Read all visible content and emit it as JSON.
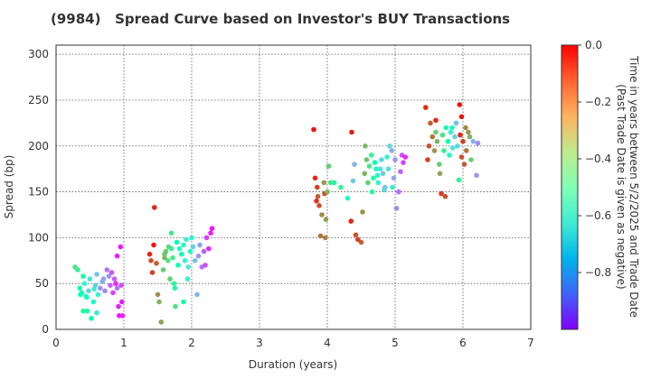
{
  "chart_data": {
    "type": "scatter",
    "title": "(9984)   Spread Curve based on Investor's BUY Transactions",
    "xlabel": "Duration (years)",
    "ylabel": "Spread (bp)",
    "xlim": [
      0,
      7
    ],
    "ylim": [
      0,
      310
    ],
    "xticks": [
      "0",
      "1",
      "2",
      "3",
      "4",
      "5",
      "6",
      "7"
    ],
    "yticks": [
      "0",
      "50",
      "100",
      "150",
      "200",
      "250",
      "300"
    ],
    "grid": true,
    "colorbar": {
      "label_line1": "Time in years between 5/2/2025 and Trade Date",
      "label_line2": "(Past Trade Date is given as negative)",
      "range": [
        -1.0,
        0.0
      ],
      "ticks": [
        "0.0",
        "−0.2",
        "−0.4",
        "−0.6",
        "−0.8"
      ],
      "colormap": "rainbow"
    },
    "points": [
      [
        0.28,
        68,
        -0.35
      ],
      [
        0.32,
        65,
        -0.4
      ],
      [
        0.35,
        45,
        -0.5
      ],
      [
        0.38,
        40,
        -0.55
      ],
      [
        0.4,
        58,
        -0.45
      ],
      [
        0.42,
        50,
        -0.6
      ],
      [
        0.45,
        35,
        -0.5
      ],
      [
        0.46,
        20,
        -0.45
      ],
      [
        0.48,
        42,
        -0.7
      ],
      [
        0.5,
        55,
        -0.65
      ],
      [
        0.52,
        12,
        -0.5
      ],
      [
        0.55,
        30,
        -0.55
      ],
      [
        0.58,
        48,
        -0.7
      ],
      [
        0.6,
        60,
        -0.72
      ],
      [
        0.62,
        38,
        -0.6
      ],
      [
        0.65,
        45,
        -0.8
      ],
      [
        0.68,
        52,
        -0.75
      ],
      [
        0.7,
        55,
        -0.78
      ],
      [
        0.72,
        42,
        -0.82
      ],
      [
        0.75,
        65,
        -0.85
      ],
      [
        0.78,
        58,
        -0.8
      ],
      [
        0.8,
        48,
        -0.88
      ],
      [
        0.82,
        62,
        -0.9
      ],
      [
        0.84,
        40,
        -0.92
      ],
      [
        0.86,
        55,
        -0.88
      ],
      [
        0.88,
        50,
        -0.95
      ],
      [
        0.9,
        45,
        -0.85
      ],
      [
        0.92,
        25,
        -0.95
      ],
      [
        0.93,
        15,
        -0.98
      ],
      [
        0.95,
        90,
        -0.97
      ],
      [
        0.96,
        48,
        -0.9
      ],
      [
        0.98,
        15,
        -0.96
      ],
      [
        0.4,
        20,
        -0.45
      ],
      [
        0.44,
        36,
        -0.55
      ],
      [
        0.56,
        44,
        -0.62
      ],
      [
        0.9,
        80,
        -0.96
      ],
      [
        0.97,
        30,
        -0.98
      ],
      [
        0.36,
        38,
        -0.52
      ],
      [
        0.6,
        18,
        -0.6
      ],
      [
        1.38,
        82,
        -0.05
      ],
      [
        1.4,
        75,
        -0.1
      ],
      [
        1.42,
        62,
        -0.08
      ],
      [
        1.44,
        92,
        -0.03
      ],
      [
        1.45,
        133,
        -0.05
      ],
      [
        1.48,
        72,
        -0.12
      ],
      [
        1.5,
        38,
        -0.2
      ],
      [
        1.52,
        30,
        -0.25
      ],
      [
        1.55,
        8,
        -0.22
      ],
      [
        1.58,
        65,
        -0.3
      ],
      [
        1.6,
        78,
        -0.25
      ],
      [
        1.62,
        85,
        -0.3
      ],
      [
        1.65,
        75,
        -0.35
      ],
      [
        1.68,
        55,
        -0.3
      ],
      [
        1.7,
        88,
        -0.4
      ],
      [
        1.72,
        78,
        -0.38
      ],
      [
        1.75,
        45,
        -0.45
      ],
      [
        1.78,
        95,
        -0.5
      ],
      [
        1.8,
        70,
        -0.48
      ],
      [
        1.82,
        88,
        -0.55
      ],
      [
        1.85,
        82,
        -0.52
      ],
      [
        1.88,
        92,
        -0.58
      ],
      [
        1.9,
        75,
        -0.6
      ],
      [
        1.92,
        98,
        -0.62
      ],
      [
        1.95,
        68,
        -0.65
      ],
      [
        1.98,
        85,
        -0.55
      ],
      [
        2.0,
        100,
        -0.6
      ],
      [
        2.02,
        90,
        -0.7
      ],
      [
        2.05,
        75,
        -0.72
      ],
      [
        2.08,
        38,
        -0.75
      ],
      [
        2.1,
        80,
        -0.8
      ],
      [
        2.12,
        92,
        -0.78
      ],
      [
        2.15,
        68,
        -0.85
      ],
      [
        2.18,
        85,
        -0.88
      ],
      [
        2.2,
        70,
        -0.9
      ],
      [
        2.22,
        100,
        -0.92
      ],
      [
        2.25,
        88,
        -0.95
      ],
      [
        2.28,
        105,
        -0.97
      ],
      [
        2.3,
        110,
        -0.98
      ],
      [
        1.7,
        105,
        -0.38
      ],
      [
        1.74,
        50,
        -0.42
      ],
      [
        1.76,
        25,
        -0.35
      ],
      [
        1.88,
        30,
        -0.45
      ],
      [
        1.94,
        55,
        -0.6
      ],
      [
        1.6,
        82,
        -0.28
      ],
      [
        1.66,
        90,
        -0.33
      ],
      [
        3.8,
        218,
        -0.02
      ],
      [
        3.82,
        165,
        -0.05
      ],
      [
        3.85,
        155,
        -0.08
      ],
      [
        3.86,
        145,
        -0.12
      ],
      [
        3.88,
        135,
        -0.1
      ],
      [
        3.9,
        102,
        -0.15
      ],
      [
        3.92,
        125,
        -0.18
      ],
      [
        3.95,
        160,
        -0.2
      ],
      [
        3.96,
        148,
        -0.1
      ],
      [
        3.98,
        120,
        -0.22
      ],
      [
        4.0,
        150,
        -0.25
      ],
      [
        4.02,
        178,
        -0.3
      ],
      [
        4.05,
        160,
        -0.35
      ],
      [
        4.1,
        160,
        -0.45
      ],
      [
        4.2,
        155,
        -0.4
      ],
      [
        4.3,
        143,
        -0.55
      ],
      [
        4.35,
        118,
        -0.05
      ],
      [
        4.38,
        162,
        -0.7
      ],
      [
        4.4,
        180,
        -0.75
      ],
      [
        4.42,
        103,
        -0.1
      ],
      [
        4.45,
        98,
        -0.08
      ],
      [
        4.5,
        95,
        -0.12
      ],
      [
        4.52,
        128,
        -0.2
      ],
      [
        4.55,
        170,
        -0.25
      ],
      [
        4.58,
        185,
        -0.28
      ],
      [
        4.6,
        160,
        -0.3
      ],
      [
        4.62,
        178,
        -0.35
      ],
      [
        4.65,
        190,
        -0.4
      ],
      [
        4.68,
        165,
        -0.45
      ],
      [
        4.7,
        182,
        -0.5
      ],
      [
        4.72,
        175,
        -0.55
      ],
      [
        4.75,
        160,
        -0.6
      ],
      [
        4.78,
        175,
        -0.65
      ],
      [
        4.8,
        185,
        -0.68
      ],
      [
        4.82,
        170,
        -0.7
      ],
      [
        4.85,
        155,
        -0.72
      ],
      [
        4.88,
        188,
        -0.6
      ],
      [
        4.9,
        175,
        -0.65
      ],
      [
        4.92,
        200,
        -0.68
      ],
      [
        4.95,
        195,
        -0.75
      ],
      [
        4.98,
        165,
        -0.78
      ],
      [
        5.0,
        185,
        -0.8
      ],
      [
        5.02,
        132,
        -0.82
      ],
      [
        5.05,
        150,
        -0.85
      ],
      [
        5.08,
        172,
        -0.88
      ],
      [
        5.1,
        190,
        -0.9
      ],
      [
        5.12,
        182,
        -0.92
      ],
      [
        5.15,
        188,
        -0.95
      ],
      [
        3.84,
        140,
        -0.06
      ],
      [
        3.97,
        100,
        -0.17
      ],
      [
        4.36,
        215,
        -0.03
      ],
      [
        4.56,
        200,
        -0.26
      ],
      [
        4.66,
        150,
        -0.43
      ],
      [
        4.74,
        168,
        -0.58
      ],
      [
        4.84,
        152,
        -0.69
      ],
      [
        4.96,
        155,
        -0.62
      ],
      [
        5.45,
        242,
        -0.05
      ],
      [
        5.48,
        185,
        -0.08
      ],
      [
        5.5,
        200,
        -0.1
      ],
      [
        5.52,
        225,
        -0.12
      ],
      [
        5.55,
        210,
        -0.15
      ],
      [
        5.58,
        195,
        -0.2
      ],
      [
        5.6,
        228,
        -0.05
      ],
      [
        5.62,
        205,
        -0.25
      ],
      [
        5.65,
        180,
        -0.3
      ],
      [
        5.68,
        148,
        -0.08
      ],
      [
        5.7,
        212,
        -0.35
      ],
      [
        5.72,
        195,
        -0.4
      ],
      [
        5.75,
        220,
        -0.45
      ],
      [
        5.78,
        205,
        -0.5
      ],
      [
        5.8,
        190,
        -0.55
      ],
      [
        5.82,
        215,
        -0.6
      ],
      [
        5.85,
        198,
        -0.65
      ],
      [
        5.88,
        210,
        -0.7
      ],
      [
        5.9,
        225,
        -0.72
      ],
      [
        5.92,
        200,
        -0.68
      ],
      [
        5.95,
        245,
        -0.02
      ],
      [
        5.96,
        212,
        -0.05
      ],
      [
        5.98,
        188,
        -0.1
      ],
      [
        6.0,
        205,
        -0.08
      ],
      [
        6.02,
        180,
        -0.12
      ],
      [
        6.05,
        195,
        -0.15
      ],
      [
        6.08,
        215,
        -0.2
      ],
      [
        6.1,
        210,
        -0.25
      ],
      [
        6.12,
        185,
        -0.3
      ],
      [
        6.15,
        205,
        -0.75
      ],
      [
        6.2,
        168,
        -0.8
      ],
      [
        6.22,
        203,
        -0.82
      ],
      [
        5.94,
        163,
        -0.4
      ],
      [
        5.6,
        215,
        -0.3
      ],
      [
        5.66,
        170,
        -0.22
      ],
      [
        5.84,
        220,
        -0.55
      ],
      [
        6.04,
        220,
        -0.18
      ],
      [
        5.98,
        232,
        -0.02
      ],
      [
        5.74,
        145,
        -0.1
      ]
    ]
  }
}
